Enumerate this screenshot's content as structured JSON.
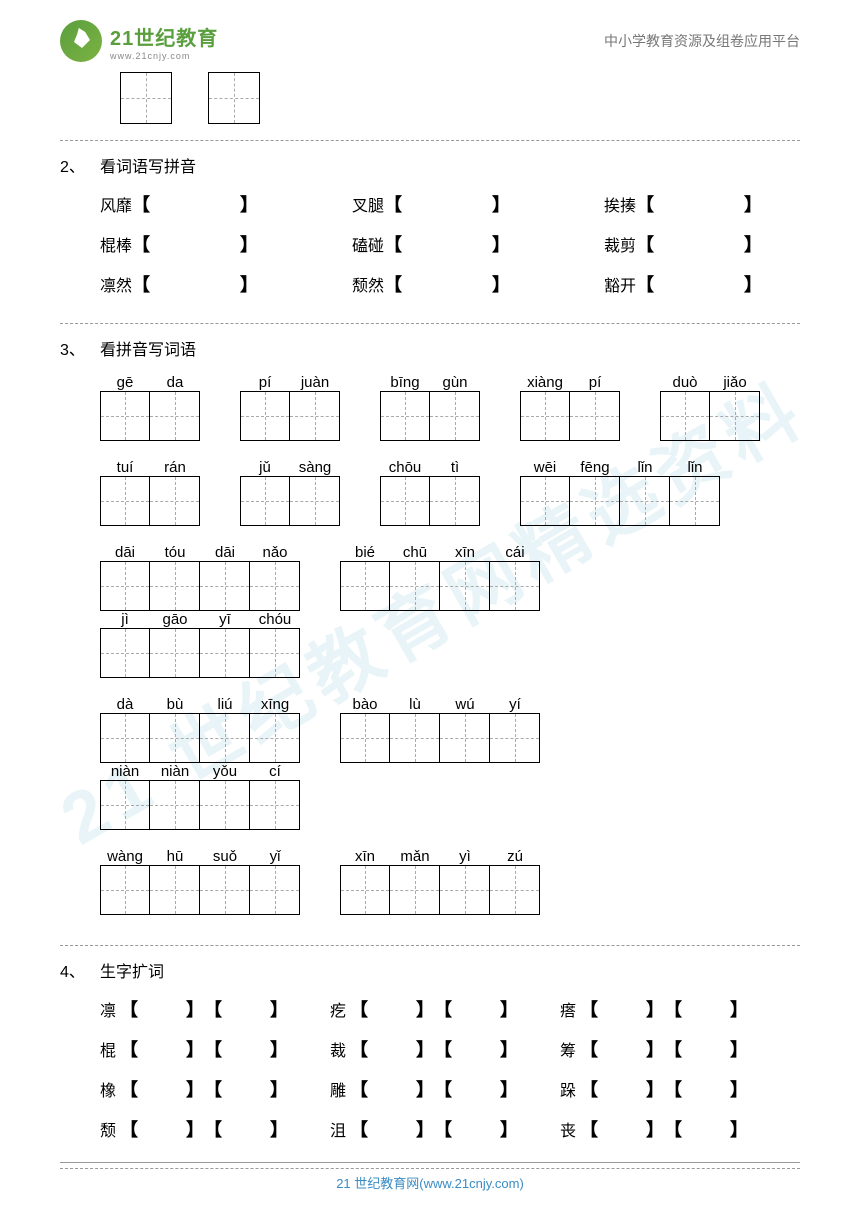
{
  "header": {
    "logo_main": "21世纪教育",
    "logo_sub": "www.21cnjy.com",
    "right_text": "中小学教育资源及组卷应用平台"
  },
  "watermark": "21 世纪教育网精选资料",
  "q2": {
    "num": "2、",
    "title": "看词语写拼音",
    "rows": [
      [
        "风靡",
        "叉腿",
        "挨揍"
      ],
      [
        "棍棒",
        "磕碰",
        "裁剪"
      ],
      [
        "凛然",
        "颓然",
        "豁开"
      ]
    ]
  },
  "q3": {
    "num": "3、",
    "title": "看拼音写词语",
    "rows": [
      [
        {
          "syls": [
            "gē",
            "da"
          ]
        },
        {
          "syls": [
            "pí",
            "juàn"
          ]
        },
        {
          "syls": [
            "bīng",
            "gùn"
          ]
        },
        {
          "syls": [
            "xiàng",
            "pí"
          ]
        },
        {
          "syls": [
            "duò",
            "jiǎo"
          ]
        }
      ],
      [
        {
          "syls": [
            "tuí",
            "rán"
          ]
        },
        {
          "syls": [
            "jǔ",
            "sàng"
          ]
        },
        {
          "syls": [
            "chōu",
            "tì"
          ]
        },
        {
          "syls": [
            "wēi",
            "fēng",
            "lǐn",
            "lǐn"
          ]
        }
      ],
      [
        {
          "syls": [
            "dāi",
            "tóu",
            "dāi",
            "nǎo"
          ]
        },
        {
          "syls": [
            "bié",
            "chū",
            "xīn",
            "cái"
          ]
        },
        {
          "syls": [
            "jì",
            "gāo",
            "yī",
            "chóu"
          ]
        }
      ],
      [
        {
          "syls": [
            "dà",
            "bù",
            "liú",
            "xīng"
          ]
        },
        {
          "syls": [
            "bào",
            "lù",
            "wú",
            "yí"
          ]
        },
        {
          "syls": [
            "niàn",
            "niàn",
            "yǒu",
            "cí"
          ]
        }
      ],
      [
        {
          "syls": [
            "wàng",
            "hū",
            "suǒ",
            "yǐ"
          ]
        },
        {
          "syls": [
            "xīn",
            "mǎn",
            "yì",
            "zú"
          ]
        }
      ]
    ]
  },
  "q4": {
    "num": "4、",
    "title": "生字扩词",
    "rows": [
      [
        "凛",
        "疙",
        "瘩"
      ],
      [
        "棍",
        "裁",
        "筹"
      ],
      [
        "橡",
        "雕",
        "跺"
      ],
      [
        "颓",
        "沮",
        "丧"
      ]
    ]
  },
  "brackets": {
    "left": "【",
    "right": "】"
  },
  "footer": "21 世纪教育网(www.21cnjy.com)"
}
